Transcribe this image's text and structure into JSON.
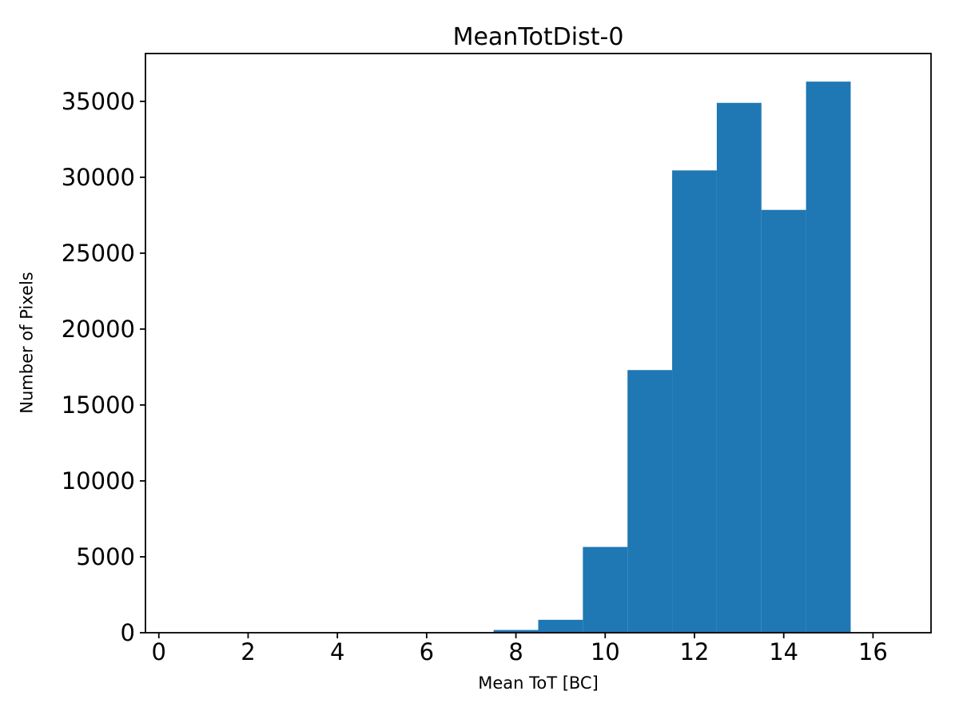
{
  "figure": {
    "background": "#ffffff",
    "bar_color": "#1f77b4",
    "axis_color": "#000000",
    "tick_color": "#000000"
  },
  "chart_data": {
    "type": "bar",
    "subtype": "histogram",
    "title": "MeanTotDist-0",
    "xlabel": "Mean ToT [BC]",
    "ylabel": "Number of Pixels",
    "bin_edges": [
      0.5,
      1.5,
      2.5,
      3.5,
      4.5,
      5.5,
      6.5,
      7.5,
      8.5,
      9.5,
      10.5,
      11.5,
      12.5,
      13.5,
      14.5,
      15.5,
      16.5
    ],
    "bin_centers": [
      1,
      2,
      3,
      4,
      5,
      6,
      7,
      8,
      9,
      10,
      11,
      12,
      13,
      14,
      15,
      16
    ],
    "counts": [
      0,
      0,
      0,
      0,
      0,
      0,
      0,
      180,
      850,
      5650,
      17300,
      30450,
      34900,
      27850,
      36300,
      0
    ],
    "xlim": [
      -0.3,
      17.3
    ],
    "ylim": [
      0,
      38150
    ],
    "xticks": [
      0,
      2,
      4,
      6,
      8,
      10,
      12,
      14,
      16
    ],
    "yticks": [
      0,
      5000,
      10000,
      15000,
      20000,
      25000,
      30000,
      35000
    ],
    "grid": false,
    "legend": null,
    "bar_color": "#1f77b4"
  }
}
